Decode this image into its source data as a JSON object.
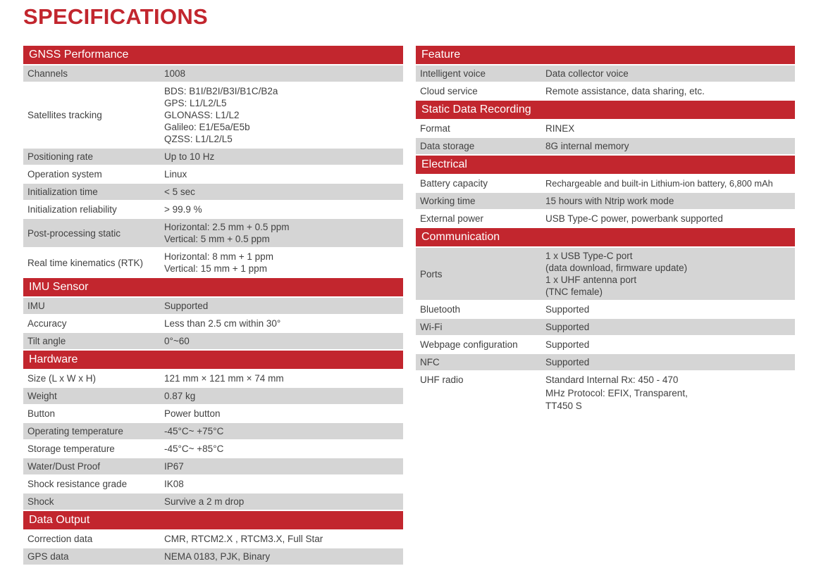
{
  "page_title": "SPECIFICATIONS",
  "colors": {
    "accent_red": "#C2262E",
    "row_gray": "#D5D5D5",
    "header_text": "#FFFFFF",
    "body_text": "#414141"
  },
  "left": {
    "sections": [
      {
        "title": "GNSS Performance",
        "rows": [
          {
            "label": "Channels",
            "value": "1008"
          },
          {
            "label": "Satellites tracking",
            "value": "BDS: B1I/B2I/B3I/B1C/B2a\nGPS: L1/L2/L5\nGLONASS: L1/L2\nGalileo: E1/E5a/E5b\nQZSS: L1/L2/L5"
          },
          {
            "label": "Positioning rate",
            "value": "Up to 10 Hz"
          },
          {
            "label": "Operation system",
            "value": "Linux"
          },
          {
            "label": "Initialization time",
            "value": "< 5 sec"
          },
          {
            "label": "Initialization reliability",
            "value": "> 99.9 %"
          },
          {
            "label": "Post-processing static",
            "value": "Horizontal: 2.5 mm + 0.5 ppm\nVertical: 5 mm + 0.5 ppm"
          },
          {
            "label": "Real time kinematics (RTK)",
            "value": "Horizontal: 8 mm + 1 ppm\nVertical: 15 mm + 1 ppm"
          }
        ]
      },
      {
        "title": "IMU Sensor",
        "rows": [
          {
            "label": "IMU",
            "value": "Supported"
          },
          {
            "label": "Accuracy",
            "value": "Less than 2.5 cm within 30°"
          },
          {
            "label": "Tilt angle",
            "value": "0°~60"
          }
        ]
      },
      {
        "title": "Hardware",
        "rows": [
          {
            "label": "Size (L x W x H)",
            "value": "121 mm × 121 mm × 74 mm"
          },
          {
            "label": "Weight",
            "value": "0.87 kg"
          },
          {
            "label": "Button",
            "value": "Power button"
          },
          {
            "label": "Operating temperature",
            "value": "-45°C~ +75°C"
          },
          {
            "label": "Storage temperature",
            "value": "-45°C~ +85°C"
          },
          {
            "label": "Water/Dust Proof",
            "value": "IP67"
          },
          {
            "label": "Shock resistance grade",
            "value": "IK08"
          },
          {
            "label": "Shock",
            "value": "Survive a 2 m drop"
          }
        ]
      },
      {
        "title": "Data Output",
        "rows": [
          {
            "label": "Correction data",
            "value": "CMR, RTCM2.X , RTCM3.X, Full Star"
          },
          {
            "label": "GPS data",
            "value": "NEMA 0183, PJK, Binary"
          }
        ]
      }
    ]
  },
  "right": {
    "sections": [
      {
        "title": "Feature",
        "rows": [
          {
            "label": "Intelligent voice",
            "value": "Data collector voice"
          },
          {
            "label": "Cloud service",
            "value": "Remote assistance, data sharing, etc."
          }
        ]
      },
      {
        "title": "Static Data Recording",
        "rows": [
          {
            "label": "Format",
            "value": "RINEX"
          },
          {
            "label": "Data storage",
            "value": "8G internal memory"
          }
        ]
      },
      {
        "title": "Electrical",
        "rows": [
          {
            "label": "Battery capacity",
            "value": "Rechargeable and built-in Lithium-ion battery, 6,800 mAh"
          },
          {
            "label": "Working time",
            "value": "15 hours with Ntrip work mode"
          },
          {
            "label": "External power",
            "value": "USB Type-C power, powerbank supported"
          }
        ]
      },
      {
        "title": "Communication",
        "rows": [
          {
            "label": "Ports",
            "value": "1 x USB Type-C port\n(data download, firmware update)\n1 x UHF antenna port\n(TNC female)"
          },
          {
            "label": "Bluetooth",
            "value": "Supported"
          },
          {
            "label": "Wi-Fi",
            "value": "Supported"
          },
          {
            "label": "Webpage configuration",
            "value": "Supported"
          },
          {
            "label": "NFC",
            "value": "Supported"
          },
          {
            "label": "UHF radio",
            "value": "Standard Internal Rx: 450 - 470\nMHz Protocol: EFIX, Transparent,\nTT450 S"
          }
        ]
      }
    ]
  }
}
